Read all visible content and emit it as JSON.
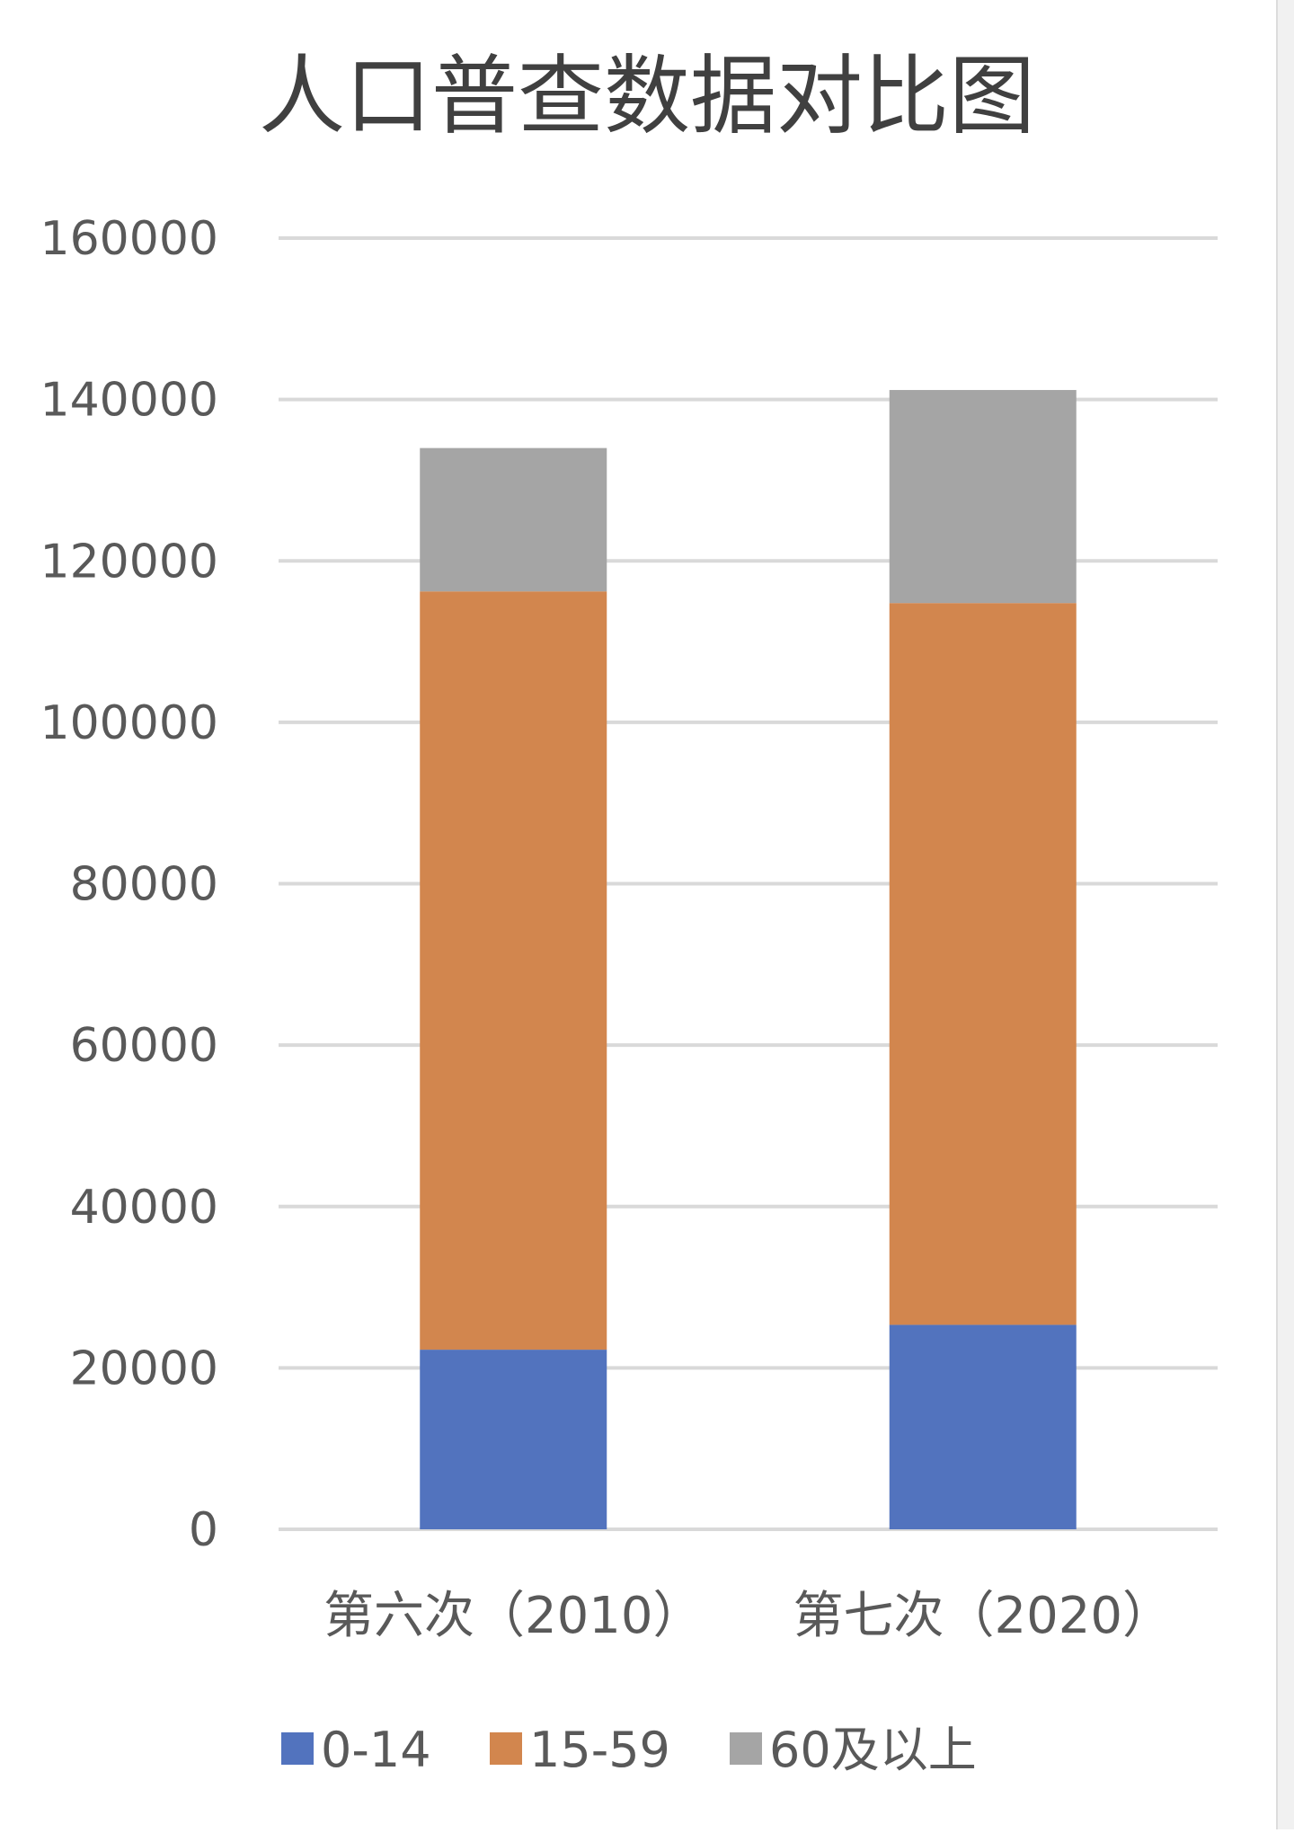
{
  "chart_data": {
    "type": "bar",
    "stacked": true,
    "title": "人口普查数据对比图",
    "categories": [
      "第六次（2010）",
      "第七次（2020）"
    ],
    "series": [
      {
        "name": "0-14",
        "values": [
          22259,
          25338
        ]
      },
      {
        "name": "15-59",
        "values": [
          93962,
          89438
        ]
      },
      {
        "name": "60及以上",
        "values": [
          17765,
          26402
        ]
      }
    ],
    "ylim": [
      0,
      160000
    ],
    "yticks": [
      0,
      20000,
      40000,
      60000,
      80000,
      100000,
      120000,
      140000,
      160000
    ],
    "grid": true,
    "legend_position": "bottom",
    "colors": [
      "#5273BE",
      "#D2864E",
      "#A5A5A5"
    ]
  }
}
